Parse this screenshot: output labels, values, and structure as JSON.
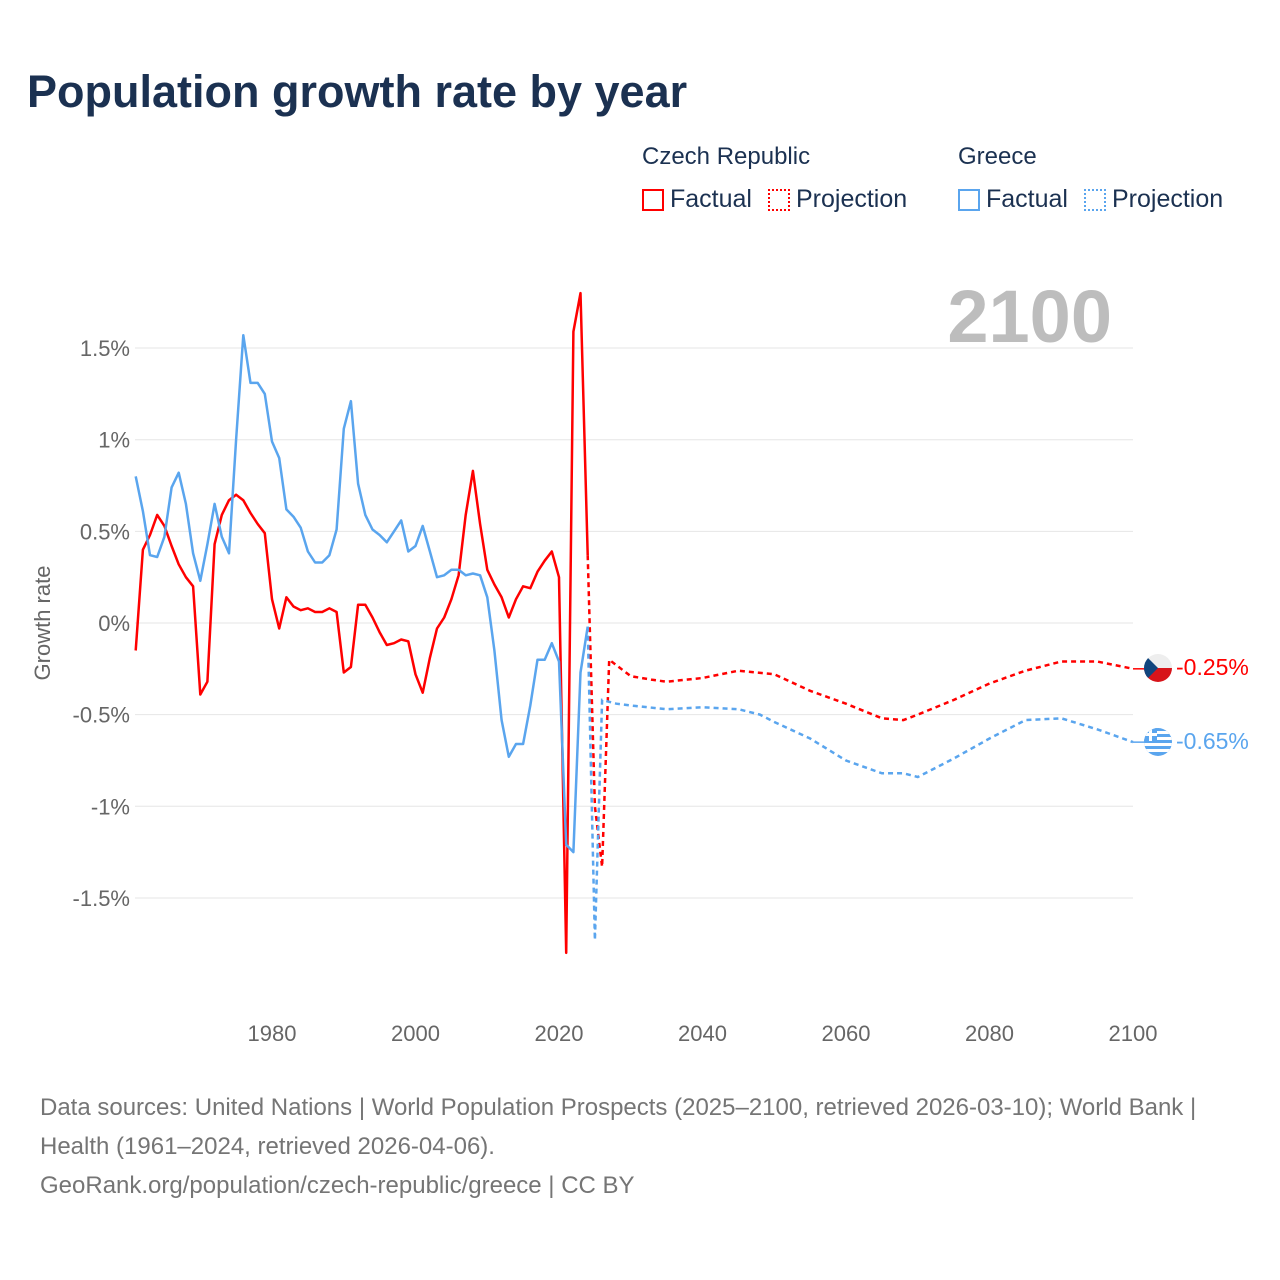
{
  "title": "Population growth rate by year",
  "legend": {
    "groups": [
      {
        "name": "Czech Republic",
        "color": "#ff0000",
        "factual": "Factual",
        "projection": "Projection"
      },
      {
        "name": "Greece",
        "color": "#5aa5ee",
        "factual": "Factual",
        "projection": "Projection"
      }
    ]
  },
  "footer": {
    "sources": "Data sources: United Nations | World Population Prospects (2025–2100, retrieved 2026-03-10); World Bank | Health (1961–2024, retrieved 2026-04-06).",
    "credit": "GeoRank.org/population/czech-republic/greece | CC BY"
  },
  "chart_data": {
    "type": "line",
    "title": "Population growth rate by year",
    "xlabel": "",
    "ylabel": "Growth rate",
    "current_year_label": "2100",
    "xlim": [
      1961,
      2100
    ],
    "ylim": [
      -2.1,
      2.1
    ],
    "x_ticks": [
      1980,
      2000,
      2020,
      2040,
      2060,
      2080,
      2100
    ],
    "y_ticks": [
      {
        "v": 1.5,
        "label": "1.5%"
      },
      {
        "v": 1,
        "label": "1%"
      },
      {
        "v": 0.5,
        "label": "0.5%"
      },
      {
        "v": 0,
        "label": "0%"
      },
      {
        "v": -0.5,
        "label": "-0.5%"
      },
      {
        "v": -1,
        "label": "-1%"
      },
      {
        "v": -1.5,
        "label": "-1.5%"
      }
    ],
    "grid": true,
    "series": [
      {
        "name": "Czech Republic",
        "color": "#ff0000",
        "end_label": "-0.25%",
        "factual": {
          "x": [
            1961,
            1962,
            1963,
            1964,
            1965,
            1966,
            1967,
            1968,
            1969,
            1970,
            1971,
            1972,
            1973,
            1974,
            1975,
            1976,
            1977,
            1978,
            1979,
            1980,
            1981,
            1982,
            1983,
            1984,
            1985,
            1986,
            1987,
            1988,
            1989,
            1990,
            1991,
            1992,
            1993,
            1994,
            1995,
            1996,
            1997,
            1998,
            1999,
            2000,
            2001,
            2002,
            2003,
            2004,
            2005,
            2006,
            2007,
            2008,
            2009,
            2010,
            2011,
            2012,
            2013,
            2014,
            2015,
            2016,
            2017,
            2018,
            2019,
            2020,
            2021,
            2022,
            2023,
            2024
          ],
          "y": [
            -0.15,
            0.4,
            0.48,
            0.59,
            0.53,
            0.42,
            0.32,
            0.25,
            0.2,
            -0.39,
            -0.32,
            0.43,
            0.59,
            0.67,
            0.7,
            0.67,
            0.6,
            0.54,
            0.49,
            0.13,
            -0.03,
            0.14,
            0.09,
            0.07,
            0.08,
            0.06,
            0.06,
            0.08,
            0.06,
            -0.27,
            -0.24,
            0.1,
            0.1,
            0.03,
            -0.05,
            -0.12,
            -0.11,
            -0.09,
            -0.1,
            -0.28,
            -0.38,
            -0.19,
            -0.03,
            0.03,
            0.13,
            0.26,
            0.59,
            0.83,
            0.54,
            0.29,
            0.21,
            0.14,
            0.03,
            0.13,
            0.2,
            0.19,
            0.28,
            0.34,
            0.39,
            0.25,
            -1.8,
            1.59,
            1.8,
            0.37
          ]
        },
        "projection": {
          "x": [
            2024,
            2025,
            2026,
            2027,
            2030,
            2033,
            2035,
            2040,
            2045,
            2050,
            2055,
            2060,
            2065,
            2068,
            2070,
            2075,
            2080,
            2085,
            2088,
            2090,
            2095,
            2100
          ],
          "y": [
            0.37,
            -1.0,
            -1.33,
            -0.2,
            -0.29,
            -0.31,
            -0.32,
            -0.3,
            -0.26,
            -0.28,
            -0.37,
            -0.44,
            -0.52,
            -0.53,
            -0.5,
            -0.42,
            -0.33,
            -0.26,
            -0.23,
            -0.21,
            -0.21,
            -0.25
          ]
        }
      },
      {
        "name": "Greece",
        "color": "#5aa5ee",
        "end_label": "-0.65%",
        "factual": {
          "x": [
            1961,
            1962,
            1963,
            1964,
            1965,
            1966,
            1967,
            1968,
            1969,
            1970,
            1971,
            1972,
            1973,
            1974,
            1975,
            1976,
            1977,
            1978,
            1979,
            1980,
            1981,
            1982,
            1983,
            1984,
            1985,
            1986,
            1987,
            1988,
            1989,
            1990,
            1991,
            1992,
            1993,
            1994,
            1995,
            1996,
            1997,
            1998,
            1999,
            2000,
            2001,
            2002,
            2003,
            2004,
            2005,
            2006,
            2007,
            2008,
            2009,
            2010,
            2011,
            2012,
            2013,
            2014,
            2015,
            2016,
            2017,
            2018,
            2019,
            2020,
            2021,
            2022,
            2023,
            2024
          ],
          "y": [
            0.8,
            0.61,
            0.37,
            0.36,
            0.47,
            0.74,
            0.82,
            0.65,
            0.38,
            0.23,
            0.43,
            0.65,
            0.47,
            0.38,
            1.0,
            1.57,
            1.31,
            1.31,
            1.25,
            0.99,
            0.9,
            0.62,
            0.58,
            0.52,
            0.39,
            0.33,
            0.33,
            0.37,
            0.51,
            1.06,
            1.21,
            0.76,
            0.59,
            0.51,
            0.48,
            0.44,
            0.5,
            0.56,
            0.39,
            0.42,
            0.53,
            0.39,
            0.25,
            0.26,
            0.29,
            0.29,
            0.26,
            0.27,
            0.26,
            0.14,
            -0.15,
            -0.53,
            -0.73,
            -0.66,
            -0.66,
            -0.45,
            -0.2,
            -0.2,
            -0.11,
            -0.21,
            -1.21,
            -1.25,
            -0.27,
            -0.02
          ]
        },
        "projection": {
          "x": [
            2024,
            2025,
            2026,
            2028,
            2030,
            2035,
            2040,
            2045,
            2048,
            2050,
            2055,
            2060,
            2065,
            2068,
            2070,
            2075,
            2080,
            2085,
            2090,
            2095,
            2100
          ],
          "y": [
            -0.02,
            -1.73,
            -0.42,
            -0.44,
            -0.45,
            -0.47,
            -0.46,
            -0.47,
            -0.5,
            -0.54,
            -0.63,
            -0.75,
            -0.82,
            -0.82,
            -0.84,
            -0.74,
            -0.63,
            -0.53,
            -0.52,
            -0.58,
            -0.65
          ]
        }
      }
    ]
  }
}
